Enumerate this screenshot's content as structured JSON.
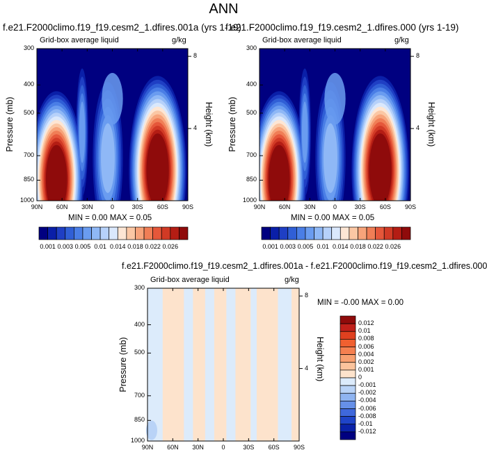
{
  "title": "ANN",
  "panels": [
    {
      "case_title": "f.e21.F2000climo.f19_f19.cesm2_1.dfires.001a (yrs 1-19)",
      "field_label": "Grid-box average liquid",
      "units": "g/kg",
      "ylabel": "Pressure (mb)",
      "right_label": "Height (km)",
      "min_max_text": "MIN =  0.00  MAX =  0.05"
    },
    {
      "case_title": "f.e21.F2000climo.f19_f19.cesm2_1.dfires.000 (yrs 1-19)",
      "field_label": "Grid-box average liquid",
      "units": "g/kg",
      "ylabel": "Pressure (mb)",
      "right_label": "Height (km)",
      "min_max_text": "MIN =  0.00  MAX =  0.05"
    },
    {
      "case_title": "f.e21.F2000climo.f19_f19.cesm2_1.dfires.001a - f.e21.F2000climo.f19_f19.cesm2_1.dfires.000",
      "field_label": "Grid-box average liquid",
      "units": "g/kg",
      "ylabel": "Pressure (mb)",
      "right_label": "Height (km)",
      "min_max_text": "MIN = -0.00  MAX =  0.00"
    }
  ],
  "chart_data": [
    {
      "type": "heatmap",
      "x_ticks": [
        "90N",
        "60N",
        "30N",
        "0",
        "30S",
        "60S",
        "90S"
      ],
      "y_ticks": [
        "300",
        "400",
        "500",
        "700",
        "850",
        "1000"
      ],
      "y_tick_values": [
        300,
        400,
        500,
        700,
        850,
        1000
      ],
      "right_ticks": [
        "8",
        "4"
      ],
      "right_tick_values": [
        8,
        4
      ],
      "colorbar": {
        "orientation": "horizontal",
        "labels": [
          "0.001",
          "0.003",
          "0.005",
          "0.01",
          "0.014",
          "0.018",
          "0.022",
          "0.026"
        ],
        "colors": [
          "#000080",
          "#0a1fa8",
          "#1f3fc4",
          "#305fd6",
          "#4a7ee6",
          "#6a9cf0",
          "#8fb8f6",
          "#b6d1fa",
          "#dae8fc",
          "#fde6d4",
          "#fbc7a4",
          "#f7a37a",
          "#f07e56",
          "#e5573a",
          "#d13a25",
          "#b41d14",
          "#8f0b0b"
        ]
      },
      "field_max": 0.05
    },
    {
      "type": "heatmap",
      "x_ticks": [
        "90N",
        "60N",
        "30N",
        "0",
        "30S",
        "60S",
        "90S"
      ],
      "y_ticks": [
        "300",
        "400",
        "500",
        "700",
        "850",
        "1000"
      ],
      "y_tick_values": [
        300,
        400,
        500,
        700,
        850,
        1000
      ],
      "right_ticks": [
        "8",
        "4"
      ],
      "right_tick_values": [
        8,
        4
      ],
      "colorbar": {
        "orientation": "horizontal",
        "labels": [
          "0.001",
          "0.003",
          "0.005",
          "0.01",
          "0.014",
          "0.018",
          "0.022",
          "0.026"
        ],
        "colors": [
          "#000080",
          "#0a1fa8",
          "#1f3fc4",
          "#305fd6",
          "#4a7ee6",
          "#6a9cf0",
          "#8fb8f6",
          "#b6d1fa",
          "#dae8fc",
          "#fde6d4",
          "#fbc7a4",
          "#f7a37a",
          "#f07e56",
          "#e5573a",
          "#d13a25",
          "#b41d14",
          "#8f0b0b"
        ]
      },
      "field_max": 0.05
    },
    {
      "type": "heatmap",
      "x_ticks": [
        "90N",
        "60N",
        "30N",
        "0",
        "30S",
        "60S",
        "90S"
      ],
      "y_ticks": [
        "300",
        "400",
        "500",
        "700",
        "850",
        "1000"
      ],
      "y_tick_values": [
        300,
        400,
        500,
        700,
        850,
        1000
      ],
      "right_ticks": [
        "8",
        "4"
      ],
      "right_tick_values": [
        8,
        4
      ],
      "colorbar": {
        "orientation": "vertical",
        "labels": [
          "0.012",
          "0.01",
          "0.008",
          "0.006",
          "0.004",
          "0.002",
          "0.001",
          "0",
          "-0.001",
          "-0.002",
          "-0.004",
          "-0.006",
          "-0.008",
          "-0.01",
          "-0.012"
        ],
        "colors": [
          "#8f0b0b",
          "#c0201a",
          "#e0401f",
          "#f06030",
          "#f58050",
          "#f8a070",
          "#fbc39c",
          "#fde3cc",
          "#dcebfb",
          "#b9d3f7",
          "#8fb4f1",
          "#6690e8",
          "#3f68dc",
          "#1f44c8",
          "#0a22a8",
          "#000080"
        ]
      }
    }
  ]
}
